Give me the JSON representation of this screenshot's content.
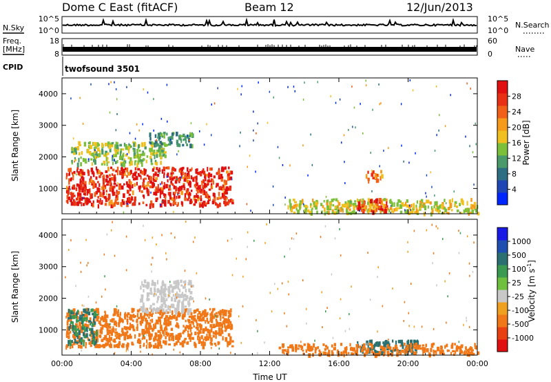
{
  "header": {
    "site": "Dome C East (fitACF)",
    "beam": "Beam 12",
    "date": "12/Jun/2013"
  },
  "nsky_panel": {
    "left_label": "N.Sky",
    "right_label": "N.Search",
    "left_ticks": [
      "10^5",
      "10^0"
    ],
    "right_ticks": [
      "10^5",
      "10^0"
    ]
  },
  "freq_panel": {
    "left_label_1": "Freq.",
    "left_label_2": "[MHz]",
    "right_label": "Nave",
    "left_ticks": [
      "18",
      "8"
    ],
    "right_ticks": [
      "60",
      "0"
    ]
  },
  "cpid_panel": {
    "label": "CPID",
    "program": "twofsound 3501"
  },
  "colors": {
    "power_scale": [
      "#0026ff",
      "#1f46b4",
      "#2e6e82",
      "#4a9a6a",
      "#7bbf3a",
      "#f0c020",
      "#f59a1a",
      "#f06018",
      "#e83014",
      "#e01010"
    ],
    "velocity_scale": [
      "#1a1ae6",
      "#1e4fb0",
      "#2a7070",
      "#3a9a50",
      "#70c040",
      "#c8c8c8",
      "#f0a020",
      "#f07818",
      "#e84010",
      "#e01010"
    ]
  },
  "chart_data": [
    {
      "type": "heatmap",
      "title": "Power",
      "ylabel": "Slant Range [km]",
      "xlabel": "",
      "x_ticks": [
        "00:00",
        "04:00",
        "08:00",
        "12:00",
        "16:00",
        "20:00",
        "00:00"
      ],
      "y_ticks": [
        "1000",
        "2000",
        "3000",
        "4000"
      ],
      "xlim": [
        0,
        24
      ],
      "ylim": [
        200,
        4500
      ],
      "colorbar_label": "Power [dB]",
      "colorbar_ticks": [
        "4",
        "8",
        "12",
        "16",
        "20",
        "24",
        "28"
      ],
      "series": [
        {
          "x": [
            0.2,
            9.8
          ],
          "y": [
            500,
            1700
          ],
          "value": 27
        },
        {
          "x": [
            0.5,
            6.0
          ],
          "y": [
            1800,
            2500
          ],
          "value": 14
        },
        {
          "x": [
            5.0,
            7.5
          ],
          "y": [
            2400,
            2800
          ],
          "value": 10
        },
        {
          "x": [
            13.0,
            24.0
          ],
          "y": [
            250,
            700
          ],
          "value": 16
        },
        {
          "x": [
            17.0,
            18.8
          ],
          "y": [
            300,
            700
          ],
          "value": 26
        },
        {
          "x": [
            17.5,
            18.5
          ],
          "y": [
            1300,
            1600
          ],
          "value": 22
        }
      ]
    },
    {
      "type": "heatmap",
      "title": "Velocity",
      "ylabel": "Slant Range [km]",
      "xlabel": "Time UT",
      "x_ticks": [
        "00:00",
        "04:00",
        "08:00",
        "12:00",
        "16:00",
        "20:00",
        "00:00"
      ],
      "y_ticks": [
        "1000",
        "2000",
        "3000",
        "4000"
      ],
      "xlim": [
        0,
        24
      ],
      "ylim": [
        200,
        4500
      ],
      "colorbar_label": "Velocity [m s^-1]",
      "colorbar_unit_base": "Velocity [m s",
      "colorbar_unit_exp": "-1",
      "colorbar_unit_end": "]",
      "colorbar_ticks": [
        "1000",
        "500",
        "100",
        "25",
        "-25",
        "-100",
        "-500",
        "-1000"
      ],
      "series": [
        {
          "x": [
            0.2,
            9.8
          ],
          "y": [
            500,
            1700
          ],
          "value": -300
        },
        {
          "x": [
            4.5,
            7.5
          ],
          "y": [
            1600,
            2600
          ],
          "value": 0
        },
        {
          "x": [
            0.3,
            2.0
          ],
          "y": [
            600,
            1700
          ],
          "value": 100
        },
        {
          "x": [
            17.0,
            20.5
          ],
          "y": [
            300,
            700
          ],
          "value": 150
        },
        {
          "x": [
            12.5,
            24.0
          ],
          "y": [
            250,
            600
          ],
          "value": -150
        }
      ]
    }
  ]
}
